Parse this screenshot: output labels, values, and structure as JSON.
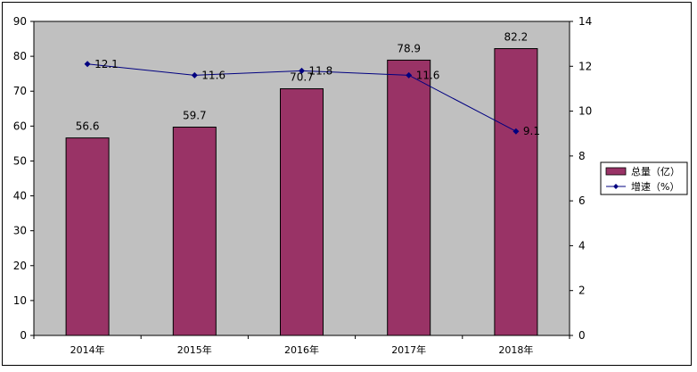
{
  "chart_data": {
    "type": "bar",
    "categories": [
      "2014年",
      "2015年",
      "2016年",
      "2017年",
      "2018年"
    ],
    "series": [
      {
        "name": "总量（亿）",
        "type": "bar",
        "axis": "left",
        "values": [
          56.6,
          59.7,
          70.7,
          78.9,
          82.2
        ]
      },
      {
        "name": "增速（%）",
        "type": "line",
        "axis": "right",
        "values": [
          12.1,
          11.6,
          11.8,
          11.6,
          9.1
        ]
      }
    ],
    "title": "",
    "xlabel": "",
    "ylabel": "",
    "ylim": [
      0,
      90
    ],
    "yticks": [
      "0",
      "10",
      "20",
      "30",
      "40",
      "50",
      "60",
      "70",
      "80",
      "90"
    ],
    "y2lim": [
      0,
      14
    ],
    "y2ticks": [
      "0",
      "2",
      "4",
      "6",
      "8",
      "10",
      "12",
      "14"
    ],
    "grid": false,
    "plot_background": "#C0C0C0",
    "colors": {
      "bar": "#993366",
      "line": "#000080"
    },
    "legend_position": "right"
  }
}
